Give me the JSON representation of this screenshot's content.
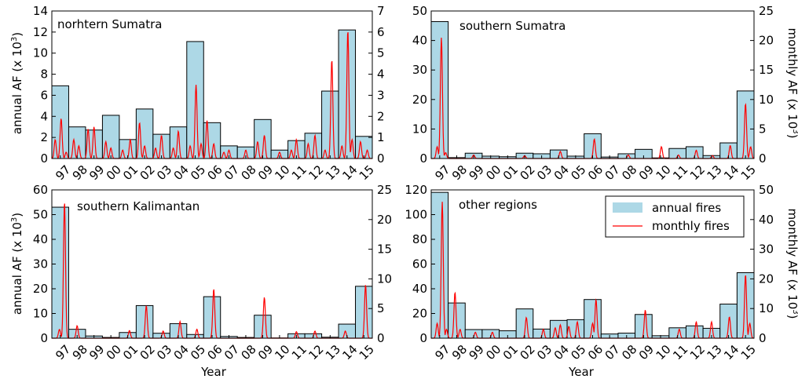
{
  "figure": {
    "xlabel": "Year",
    "ylabel_left": "annual AF (x 10",
    "ylabel_right": "monthly AF (x 10",
    "ylabel_exp": "3",
    "ylabel_close": ")",
    "legend": {
      "placement": "top-right of the bottom-right panel",
      "annual_label": "annual fires",
      "monthly_label": "monthly fires"
    },
    "colors": {
      "annual_bar": "#add8e6",
      "monthly_line": "#ff0000",
      "edge": "#000000"
    }
  },
  "chart_data": [
    {
      "type": "bar",
      "title": "norhtern Sumatra",
      "categories": [
        "97",
        "98",
        "99",
        "00",
        "01",
        "02",
        "03",
        "04",
        "05",
        "06",
        "07",
        "08",
        "09",
        "10",
        "11",
        "12",
        "13",
        "14",
        "15"
      ],
      "annual_values": [
        6.9,
        3.0,
        2.7,
        4.1,
        1.8,
        4.7,
        2.3,
        3.0,
        11.1,
        3.4,
        1.2,
        1.1,
        3.7,
        0.8,
        1.7,
        2.4,
        6.4,
        12.2,
        2.1
      ],
      "ylim_left": [
        0,
        14
      ],
      "yticks_left": [
        0,
        2,
        4,
        6,
        8,
        10,
        12,
        14
      ],
      "ylim_right": [
        0,
        7
      ],
      "yticks_right": [
        0,
        1,
        2,
        3,
        4,
        5,
        6,
        7
      ],
      "monthly_peaks": [
        [
          0.2,
          0.9
        ],
        [
          0.55,
          1.9
        ],
        [
          0.85,
          0.3
        ],
        [
          1.3,
          0.9
        ],
        [
          1.6,
          0.6
        ],
        [
          2.15,
          1.4
        ],
        [
          2.5,
          1.5
        ],
        [
          3.2,
          0.8
        ],
        [
          3.5,
          0.5
        ],
        [
          4.2,
          0.4
        ],
        [
          4.65,
          0.9
        ],
        [
          5.2,
          1.7
        ],
        [
          5.5,
          0.6
        ],
        [
          6.15,
          0.5
        ],
        [
          6.5,
          1.1
        ],
        [
          7.2,
          0.5
        ],
        [
          7.5,
          1.3
        ],
        [
          8.2,
          0.6
        ],
        [
          8.55,
          3.5
        ],
        [
          8.85,
          0.7
        ],
        [
          9.2,
          1.8
        ],
        [
          9.6,
          0.7
        ],
        [
          10.2,
          0.3
        ],
        [
          10.5,
          0.4
        ],
        [
          11.5,
          0.4
        ],
        [
          12.2,
          0.8
        ],
        [
          12.6,
          1.1
        ],
        [
          13.5,
          0.3
        ],
        [
          14.2,
          0.4
        ],
        [
          14.5,
          0.9
        ],
        [
          15.2,
          0.7
        ],
        [
          15.6,
          1.1
        ],
        [
          16.2,
          0.4
        ],
        [
          16.6,
          4.7
        ],
        [
          17.2,
          0.6
        ],
        [
          17.55,
          6.1
        ],
        [
          17.8,
          0.9
        ],
        [
          18.3,
          0.8
        ],
        [
          18.7,
          0.4
        ]
      ]
    },
    {
      "type": "bar",
      "title": "southern Sumatra",
      "categories": [
        "97",
        "98",
        "99",
        "00",
        "01",
        "02",
        "03",
        "04",
        "05",
        "06",
        "07",
        "08",
        "09",
        "10",
        "11",
        "12",
        "13",
        "14",
        "15"
      ],
      "annual_values": [
        46.4,
        0.3,
        1.8,
        0.8,
        0.6,
        1.8,
        1.6,
        2.9,
        0.8,
        8.4,
        0.5,
        1.6,
        3.1,
        0.2,
        3.4,
        4.0,
        1.0,
        5.3,
        22.9
      ],
      "ylim_left": [
        0,
        50
      ],
      "yticks_left": [
        0,
        10,
        20,
        30,
        40,
        50
      ],
      "ylim_right": [
        0,
        25
      ],
      "yticks_right": [
        0,
        5,
        10,
        15,
        20,
        25
      ],
      "monthly_peaks": [
        [
          0.35,
          2.0
        ],
        [
          0.6,
          20.5
        ],
        [
          0.85,
          1.0
        ],
        [
          2.5,
          0.6
        ],
        [
          5.5,
          0.5
        ],
        [
          7.6,
          1.2
        ],
        [
          9.6,
          3.3
        ],
        [
          11.6,
          0.6
        ],
        [
          13.55,
          2.0
        ],
        [
          14.55,
          0.6
        ],
        [
          15.6,
          1.4
        ],
        [
          16.55,
          0.5
        ],
        [
          17.6,
          2.2
        ],
        [
          18.5,
          9.3
        ],
        [
          18.8,
          2.0
        ]
      ]
    },
    {
      "type": "bar",
      "title": "southern Kalimantan",
      "categories": [
        "97",
        "98",
        "99",
        "00",
        "01",
        "02",
        "03",
        "04",
        "05",
        "06",
        "07",
        "08",
        "09",
        "10",
        "11",
        "12",
        "13",
        "14",
        "15"
      ],
      "annual_values": [
        53.0,
        3.6,
        0.9,
        0.3,
        2.3,
        13.2,
        2.0,
        5.9,
        1.5,
        16.8,
        0.7,
        0.3,
        9.3,
        0.1,
        1.8,
        1.8,
        0.4,
        5.7,
        21.0
      ],
      "ylim_left": [
        0,
        60
      ],
      "yticks_left": [
        0,
        10,
        20,
        30,
        40,
        50,
        60
      ],
      "ylim_right": [
        0,
        25
      ],
      "yticks_right": [
        0,
        5,
        10,
        15,
        20,
        25
      ],
      "monthly_peaks": [
        [
          0.45,
          1.5
        ],
        [
          0.75,
          23.0
        ],
        [
          1.5,
          2.1
        ],
        [
          4.6,
          1.3
        ],
        [
          5.6,
          5.5
        ],
        [
          6.6,
          1.2
        ],
        [
          7.6,
          2.8
        ],
        [
          8.6,
          1.5
        ],
        [
          9.6,
          8.3
        ],
        [
          12.6,
          6.9
        ],
        [
          14.5,
          1.1
        ],
        [
          15.6,
          1.2
        ],
        [
          17.4,
          1.2
        ],
        [
          18.6,
          9.0
        ]
      ]
    },
    {
      "type": "bar",
      "title": "other regions",
      "categories": [
        "97",
        "98",
        "99",
        "00",
        "01",
        "02",
        "03",
        "04",
        "05",
        "06",
        "07",
        "08",
        "09",
        "10",
        "11",
        "12",
        "13",
        "14",
        "15"
      ],
      "annual_values": [
        118,
        28.5,
        7.0,
        7.0,
        6.0,
        23.7,
        7.4,
        14.4,
        15.0,
        31.3,
        3.4,
        4.1,
        19.2,
        2.0,
        8.4,
        10.0,
        8.0,
        27.6,
        53.0
      ],
      "ylim_left": [
        0,
        120
      ],
      "yticks_left": [
        0,
        20,
        40,
        60,
        80,
        100,
        120
      ],
      "ylim_right": [
        0,
        50
      ],
      "yticks_right": [
        0,
        10,
        20,
        30,
        40,
        50
      ],
      "monthly_peaks": [
        [
          0.35,
          5.0
        ],
        [
          0.65,
          46.0
        ],
        [
          0.9,
          3.0
        ],
        [
          1.4,
          15.5
        ],
        [
          1.7,
          3.0
        ],
        [
          2.6,
          2.0
        ],
        [
          3.6,
          2.0
        ],
        [
          5.6,
          7.0
        ],
        [
          6.6,
          3.0
        ],
        [
          7.3,
          3.5
        ],
        [
          7.6,
          4.5
        ],
        [
          8.1,
          4.0
        ],
        [
          8.6,
          5.5
        ],
        [
          9.5,
          5.0
        ],
        [
          9.7,
          13.0
        ],
        [
          12.6,
          9.5
        ],
        [
          14.6,
          3.0
        ],
        [
          15.6,
          5.5
        ],
        [
          16.5,
          5.5
        ],
        [
          17.55,
          7.2
        ],
        [
          18.5,
          21.5
        ],
        [
          18.75,
          5.0
        ]
      ]
    }
  ]
}
